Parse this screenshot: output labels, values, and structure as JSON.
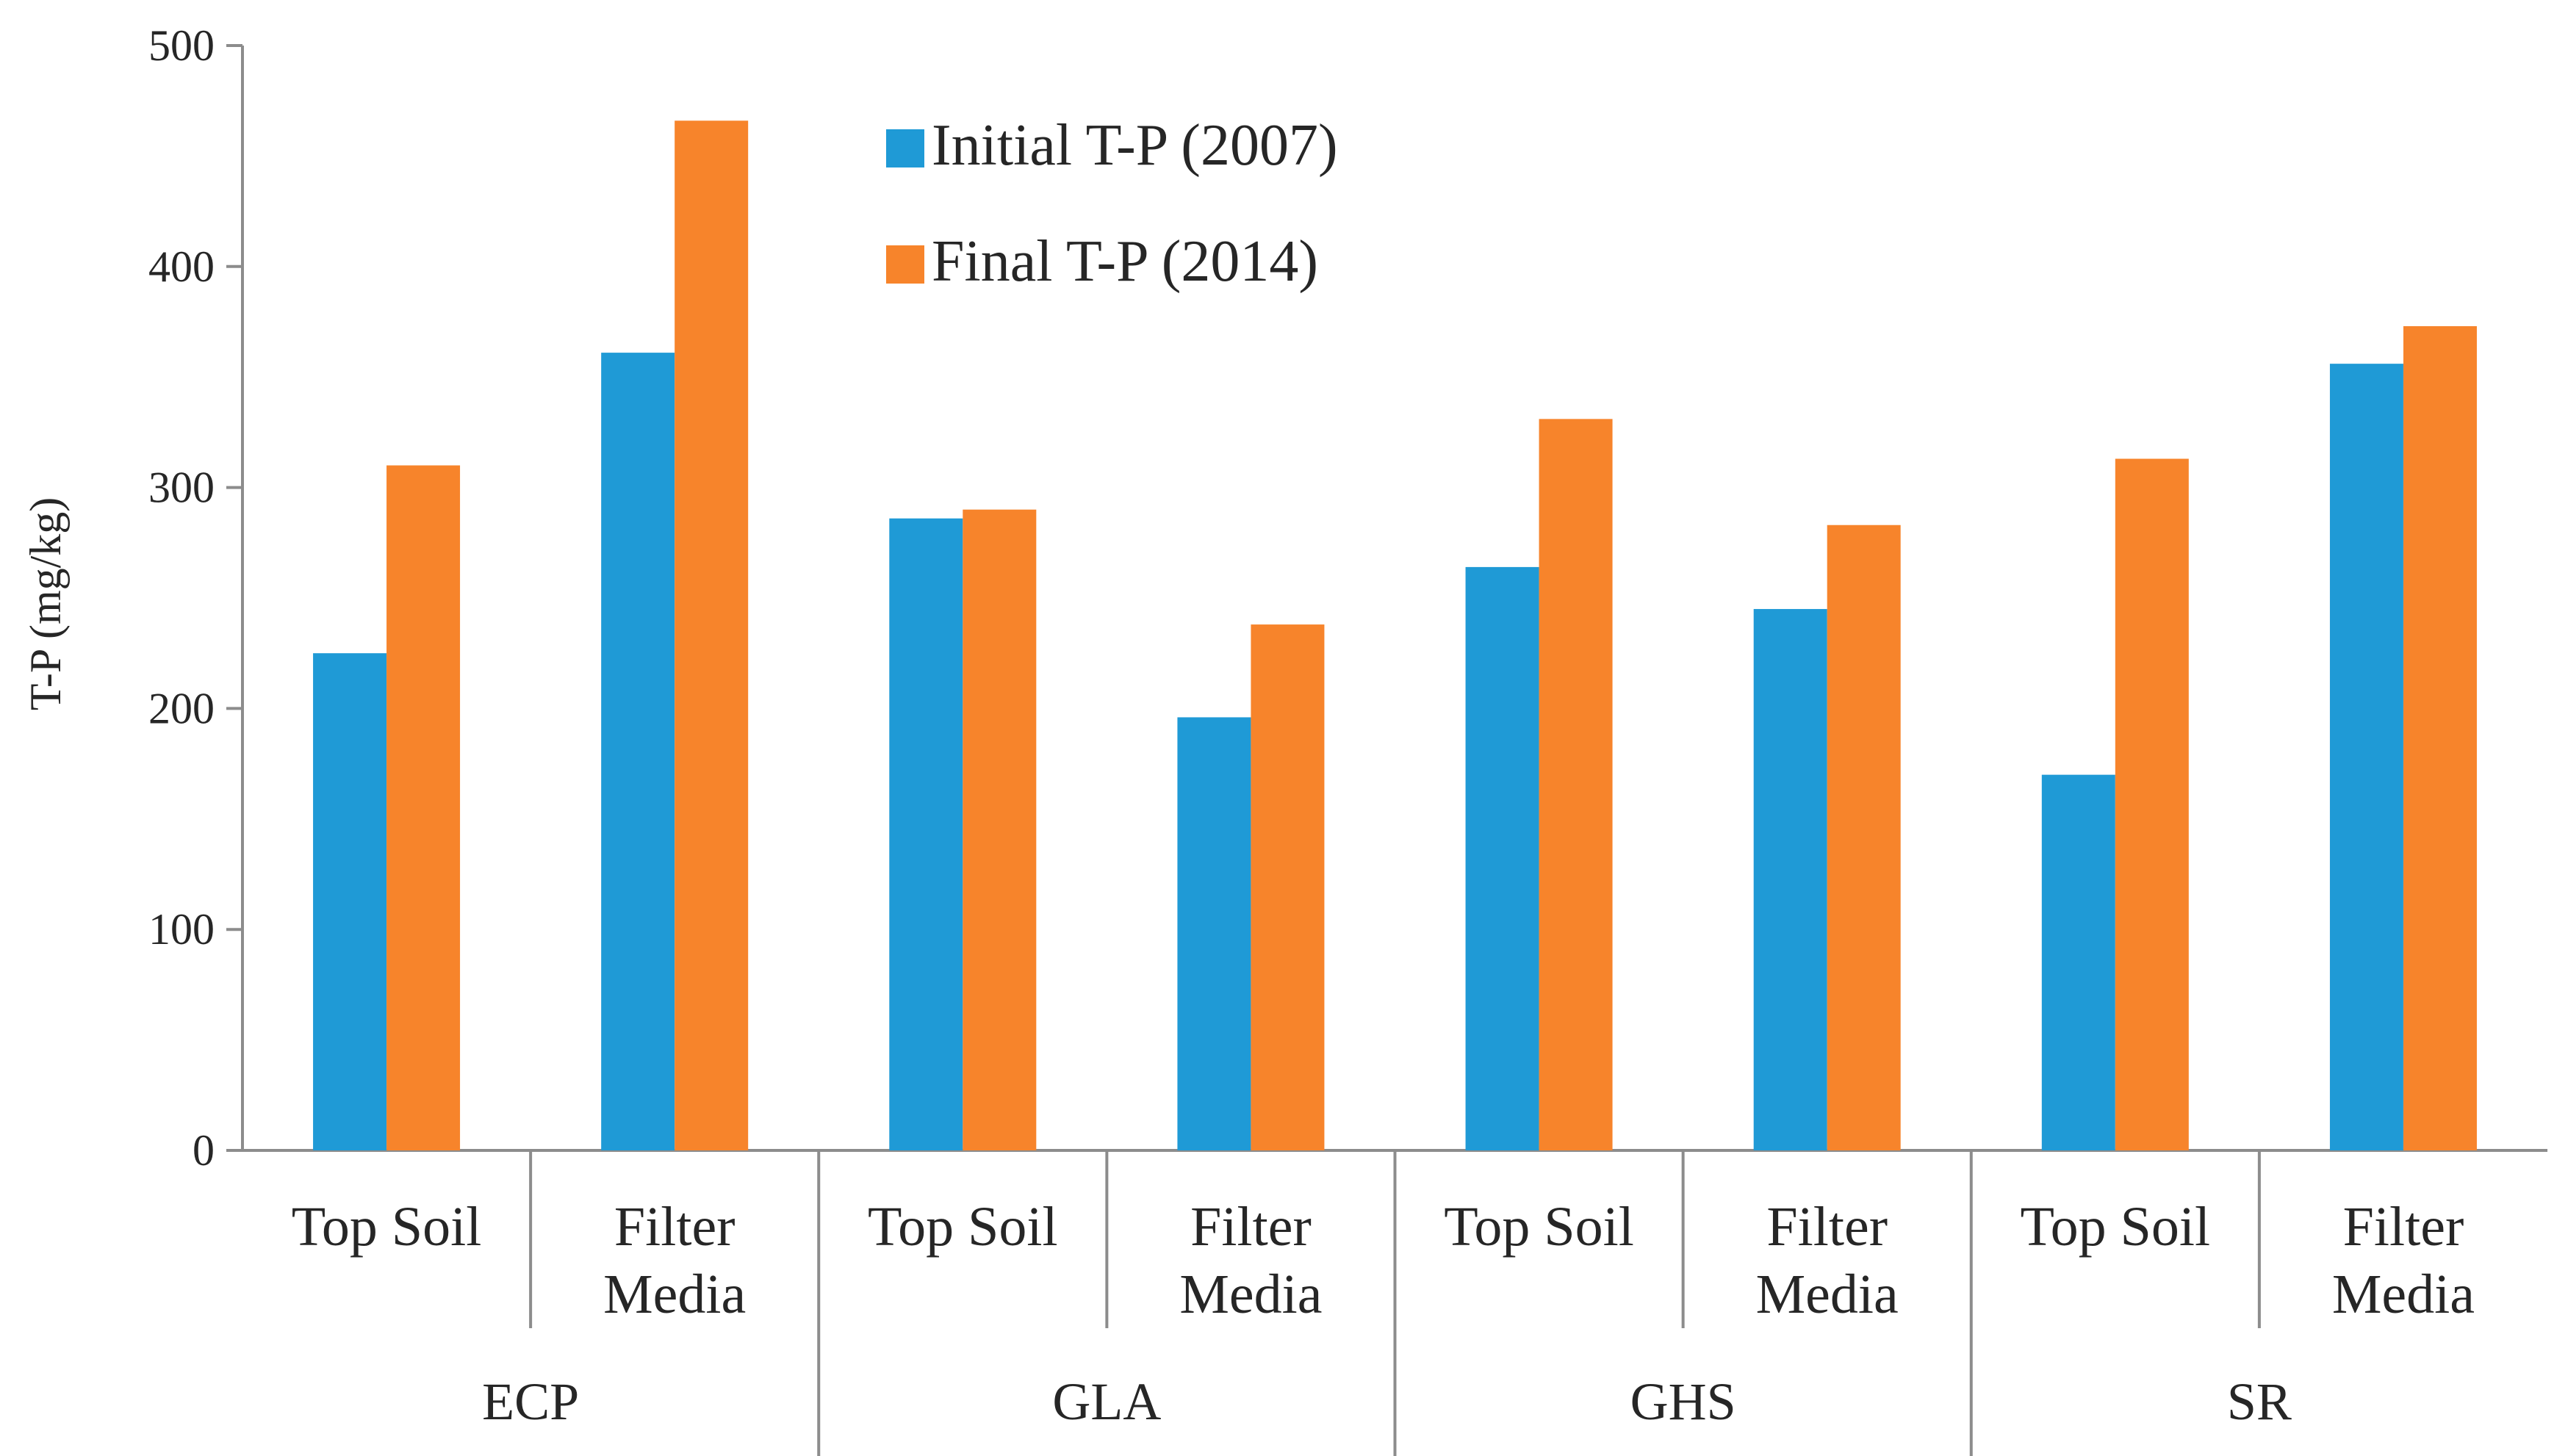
{
  "chart_data": {
    "type": "bar",
    "title": "",
    "xlabel": "",
    "ylabel": "T-P (mg/kg)",
    "ylim": [
      0,
      500
    ],
    "yticks": [
      0,
      100,
      200,
      300,
      400,
      500
    ],
    "grid": false,
    "legend_position": "top-center",
    "groups": [
      "ECP",
      "GLA",
      "GHS",
      "SR"
    ],
    "categories": [
      {
        "group": "ECP",
        "lines": [
          "Top Soil"
        ]
      },
      {
        "group": "ECP",
        "lines": [
          "Filter",
          "Media"
        ]
      },
      {
        "group": "GLA",
        "lines": [
          "Top Soil"
        ]
      },
      {
        "group": "GLA",
        "lines": [
          "Filter",
          "Media"
        ]
      },
      {
        "group": "GHS",
        "lines": [
          "Top Soil"
        ]
      },
      {
        "group": "GHS",
        "lines": [
          "Filter",
          "Media"
        ]
      },
      {
        "group": "SR",
        "lines": [
          "Top Soil"
        ]
      },
      {
        "group": "SR",
        "lines": [
          "Filter",
          "Media"
        ]
      }
    ],
    "series": [
      {
        "name": "Initial T-P (2007)",
        "color": "#1f9ad6",
        "values": [
          225,
          361,
          286,
          196,
          264,
          245,
          170,
          356
        ]
      },
      {
        "name": "Final T-P (2014)",
        "color": "#f7842b",
        "values": [
          310,
          466,
          290,
          238,
          331,
          283,
          313,
          373
        ]
      }
    ]
  }
}
